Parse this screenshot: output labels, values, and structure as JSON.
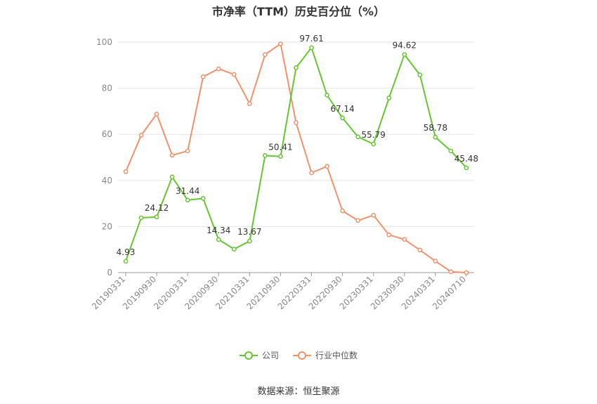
{
  "title": "市净率（TTM）历史百分位（%）",
  "source": "数据来源：恒生聚源",
  "colors": {
    "company": "#66c631",
    "industry": "#f3916b",
    "grid": "#e6e6e6",
    "axis": "#999999"
  },
  "chart_data": {
    "type": "line",
    "ylim": [
      0,
      100
    ],
    "yticks": [
      0,
      20,
      40,
      60,
      80,
      100
    ],
    "grid": true,
    "legend_position": "bottom-center",
    "xtick_labels": [
      "20190331",
      "20190930",
      "20200331",
      "20200930",
      "20210331",
      "20210930",
      "20220331",
      "20220930",
      "20230331",
      "20230930",
      "20240331",
      "20240710"
    ],
    "x": [
      "20190331",
      "20190630",
      "20190930",
      "20191231",
      "20200331",
      "20200630",
      "20200930",
      "20201231",
      "20210331",
      "20210630",
      "20210930",
      "20211231",
      "20220331",
      "20220630",
      "20220930",
      "20221231",
      "20230331",
      "20230630",
      "20230930",
      "20231231",
      "20240331",
      "20240630",
      "20240710"
    ],
    "series": [
      {
        "name": "公司",
        "values": [
          4.93,
          23.8,
          24.12,
          41.5,
          31.44,
          32.2,
          14.34,
          10.2,
          13.67,
          50.8,
          50.41,
          88.9,
          97.61,
          77.0,
          67.14,
          58.9,
          55.79,
          75.8,
          94.62,
          85.8,
          58.78,
          52.8,
          45.48
        ],
        "labels": {
          "0": "4.93",
          "2": "24.12",
          "4": "31.44",
          "6": "14.34",
          "8": "13.67",
          "10": "50.41",
          "12": "97.61",
          "14": "67.14",
          "16": "55.79",
          "18": "94.62",
          "20": "58.78",
          "22": "45.48"
        }
      },
      {
        "name": "行业中位数",
        "values": [
          43.8,
          59.6,
          68.8,
          50.9,
          52.8,
          85.0,
          88.4,
          86.0,
          73.3,
          94.6,
          99.3,
          65.1,
          43.3,
          46.1,
          26.8,
          22.6,
          24.9,
          16.4,
          14.4,
          9.8,
          5.0,
          0.4,
          0.0
        ]
      }
    ]
  }
}
